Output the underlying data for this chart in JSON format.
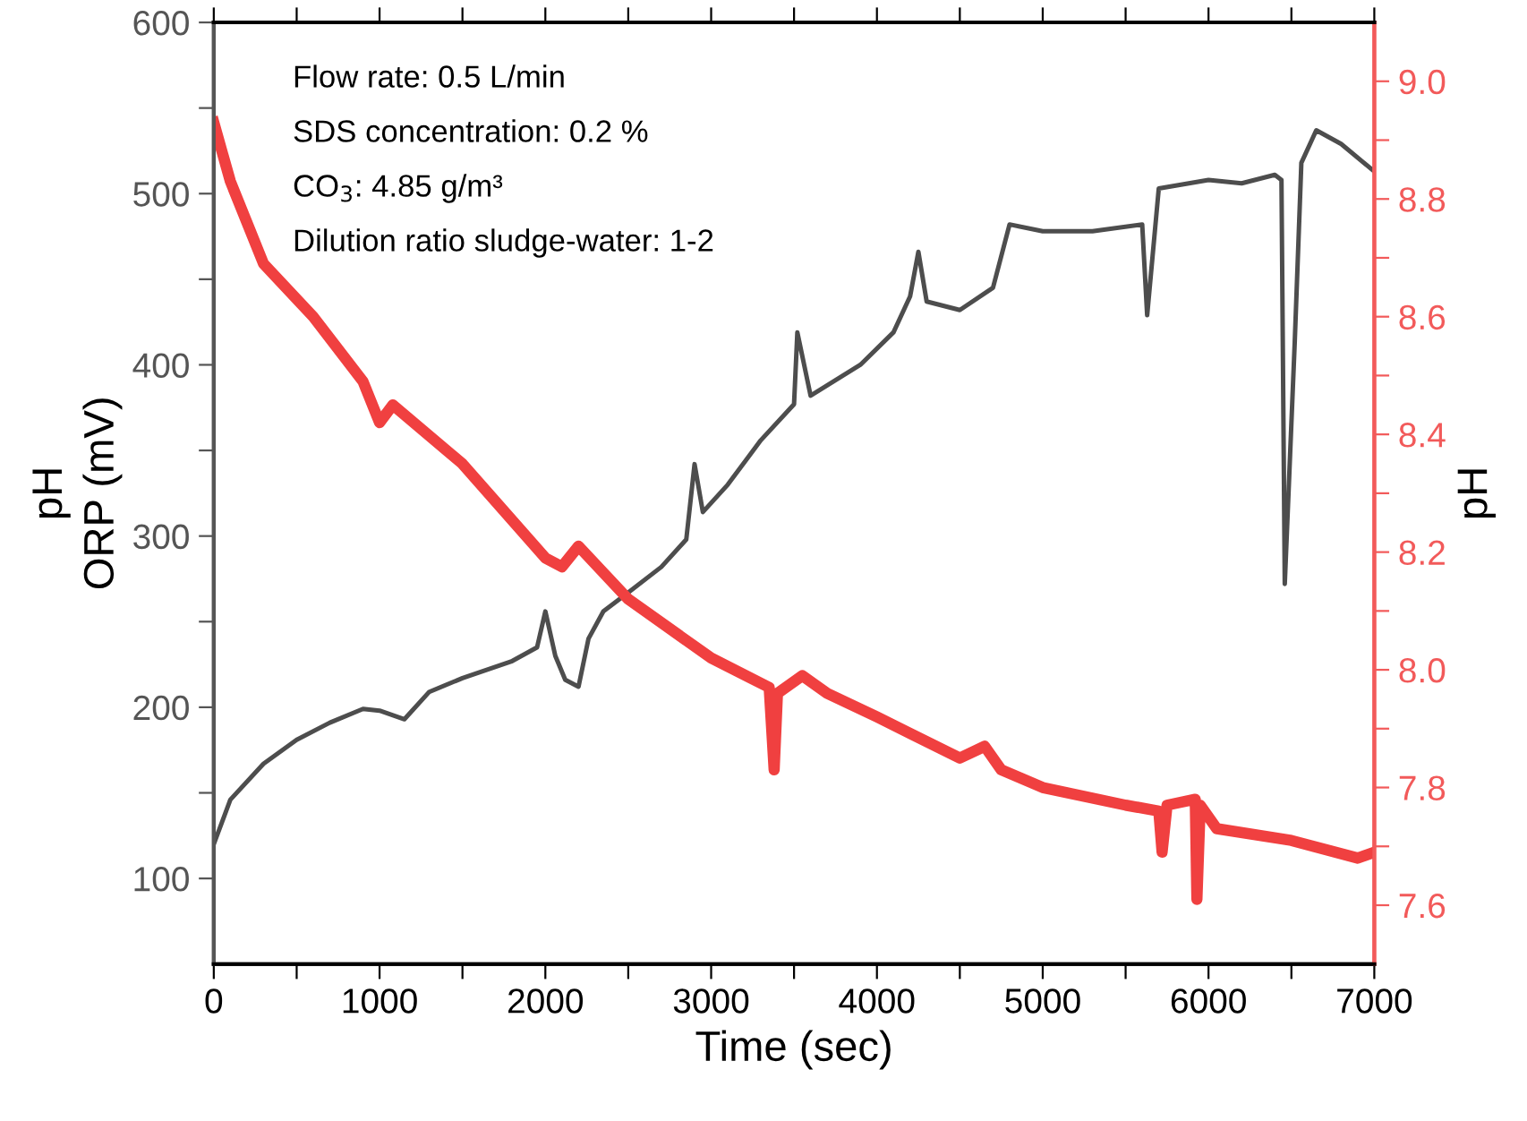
{
  "chart_data": {
    "type": "line",
    "xlabel": "Time (sec)",
    "ylabel": "pH\nORP (mV)",
    "y2label": "pH",
    "annotations": [
      "Flow rate: 0.5 L/min",
      "SDS concentration: 0.2 %",
      "CO$_{3}$: 4.85 g/m³",
      "Dilution ratio sludge-water: 1-2"
    ],
    "xlim": [
      0,
      7000
    ],
    "ylim": [
      50,
      600
    ],
    "y2lim": [
      7.5,
      9.1
    ],
    "xticks": [
      0,
      {
        "value": 500,
        "label": null
      },
      1000,
      {
        "value": 1500,
        "label": null
      },
      2000,
      {
        "value": 2500,
        "label": null
      },
      3000,
      {
        "value": 3500,
        "label": null
      },
      4000,
      {
        "value": 4500,
        "label": null
      },
      5000,
      {
        "value": 5500,
        "label": null
      },
      6000,
      {
        "value": 6500,
        "label": null
      },
      7000
    ],
    "yticks": [
      100,
      {
        "value": 150,
        "label": null
      },
      200,
      {
        "value": 250,
        "label": null
      },
      300,
      {
        "value": 350,
        "label": null
      },
      400,
      {
        "value": 450,
        "label": null
      },
      500,
      {
        "value": 550,
        "label": null
      },
      600
    ],
    "y2ticks": [
      {
        "value": 7.6,
        "label": "7.6"
      },
      {
        "value": 7.7,
        "label": null
      },
      {
        "value": 7.8,
        "label": "7.8"
      },
      {
        "value": 7.9,
        "label": null
      },
      {
        "value": 8.0,
        "label": "8.0"
      },
      {
        "value": 8.1,
        "label": null
      },
      {
        "value": 8.2,
        "label": "8.2"
      },
      {
        "value": 8.3,
        "label": null
      },
      {
        "value": 8.4,
        "label": "8.4"
      },
      {
        "value": 8.5,
        "label": null
      },
      {
        "value": 8.6,
        "label": "8.6"
      },
      {
        "value": 8.7,
        "label": null
      },
      {
        "value": 8.8,
        "label": "8.8"
      },
      {
        "value": 8.9,
        "label": null
      },
      {
        "value": 9.0,
        "label": "9.0"
      }
    ],
    "series": [
      {
        "color": "#4d4d4d",
        "x": [
          0,
          100,
          300,
          500,
          700,
          900,
          1000,
          1150,
          1300,
          1500,
          1800,
          1950,
          2000,
          2060,
          2120,
          2200,
          2260,
          2350,
          2500,
          2700,
          2850,
          2900,
          2950,
          3100,
          3300,
          3500,
          3520,
          3600,
          3900,
          4100,
          4200,
          4250,
          4300,
          4500,
          4700,
          4800,
          5000,
          5300,
          5600,
          5630,
          5700,
          6000,
          6200,
          6400,
          6440,
          6460,
          6520,
          6560,
          6650,
          6800,
          7000
        ],
        "values": [
          120,
          146,
          167,
          181,
          191,
          199,
          198,
          193,
          209,
          217,
          227,
          235,
          256,
          230,
          216,
          212,
          240,
          256,
          267,
          282,
          298,
          342,
          314,
          330,
          356,
          377,
          419,
          382,
          400,
          419,
          440,
          466,
          437,
          432,
          445,
          482,
          478,
          478,
          482,
          429,
          503,
          508,
          506,
          511,
          508,
          272,
          413,
          518,
          537,
          529,
          513
        ]
      },
      {
        "color": "#f04040",
        "axis": "y2",
        "x": [
          0,
          100,
          300,
          600,
          900,
          1000,
          1080,
          1500,
          2000,
          2100,
          2200,
          2500,
          3000,
          3350,
          3380,
          3400,
          3550,
          3700,
          4000,
          4500,
          4650,
          4750,
          5000,
          5500,
          5700,
          5720,
          5750,
          5920,
          5930,
          5950,
          6050,
          6500,
          6900,
          7000
        ],
        "values": [
          8.93,
          8.83,
          8.69,
          8.6,
          8.49,
          8.42,
          8.45,
          8.35,
          8.19,
          8.175,
          8.21,
          8.12,
          8.02,
          7.97,
          7.83,
          7.96,
          7.99,
          7.96,
          7.92,
          7.85,
          7.87,
          7.83,
          7.8,
          7.77,
          7.76,
          7.69,
          7.77,
          7.78,
          7.61,
          7.77,
          7.73,
          7.71,
          7.68,
          7.69
        ]
      }
    ]
  }
}
